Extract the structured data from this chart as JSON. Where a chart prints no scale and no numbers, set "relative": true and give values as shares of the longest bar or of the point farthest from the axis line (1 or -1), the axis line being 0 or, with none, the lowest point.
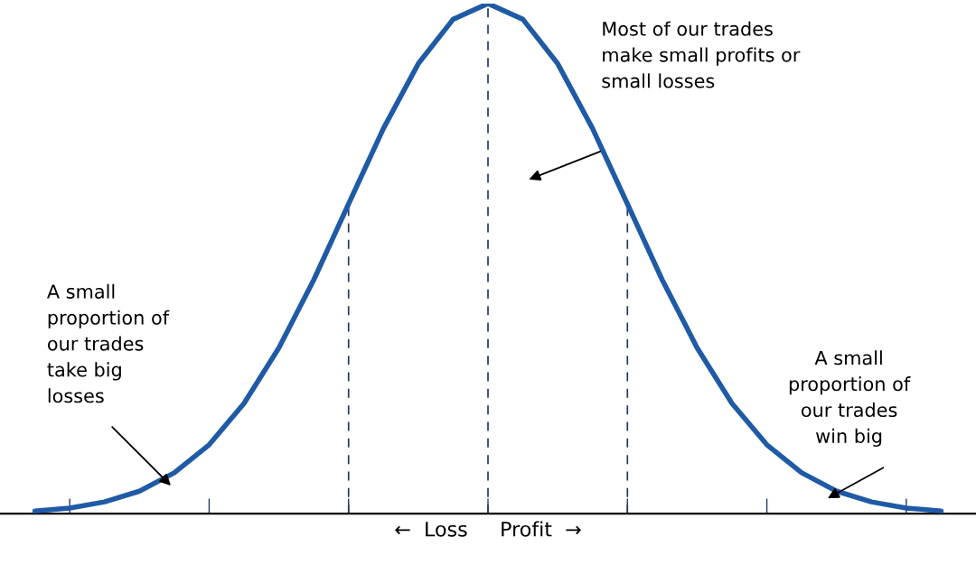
{
  "chart_data": {
    "type": "line",
    "relative": true,
    "xlabel": "←  Loss     Profit  →",
    "categories": [
      null,
      null,
      null,
      null,
      null,
      null,
      null,
      null,
      null,
      null,
      null,
      null,
      null,
      null,
      null,
      null,
      null,
      null,
      null,
      null,
      null,
      null,
      null,
      null,
      null,
      null,
      null
    ],
    "series": [
      {
        "color": "#1f5aa6",
        "values": [
          0.005,
          0.011,
          0.023,
          0.044,
          0.08,
          0.135,
          0.216,
          0.325,
          0.458,
          0.607,
          0.755,
          0.882,
          0.969,
          1,
          0.969,
          0.882,
          0.755,
          0.607,
          0.458,
          0.325,
          0.216,
          0.135,
          0.08,
          0.044,
          0.023,
          0.011,
          0.005
        ]
      }
    ],
    "annotations": [
      "Most of our trades\nmake small profits or\nsmall losses",
      "A small\nproportion of\nour trades\ntake big\nlosses",
      "A small\nproportion of\nour trades\nwin big"
    ],
    "marker": "none",
    "line_style": "solid"
  }
}
